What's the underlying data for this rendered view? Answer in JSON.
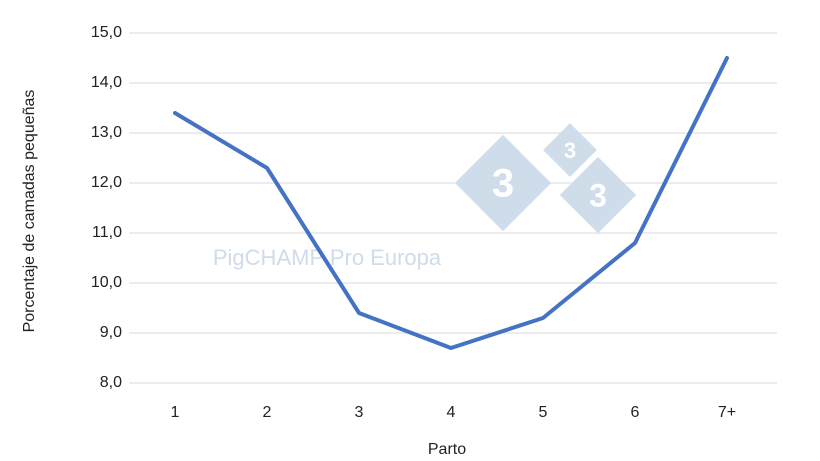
{
  "chart_data": {
    "type": "line",
    "x_label": "Parto",
    "y_label": "Porcentaje de camadas pequeñas",
    "watermark": "PigCHAMP Pro Europa",
    "logo_digits": [
      "3",
      "3",
      "3"
    ],
    "categories": [
      "1",
      "2",
      "3",
      "4",
      "5",
      "6",
      "7+"
    ],
    "series": [
      {
        "color": "#4472c4",
        "values": [
          13.4,
          12.3,
          9.4,
          8.7,
          9.3,
          10.8,
          14.5
        ]
      }
    ],
    "ylim": [
      8,
      15
    ],
    "yticks": [
      {
        "value": 8,
        "label": "8,0"
      },
      {
        "value": 9,
        "label": "9,0"
      },
      {
        "value": 10,
        "label": "10,0"
      },
      {
        "value": 11,
        "label": "11,0"
      },
      {
        "value": 12,
        "label": "12,0"
      },
      {
        "value": 13,
        "label": "13,0"
      },
      {
        "value": 14,
        "label": "14,0"
      },
      {
        "value": 15,
        "label": "15,0"
      }
    ],
    "grid": true
  }
}
